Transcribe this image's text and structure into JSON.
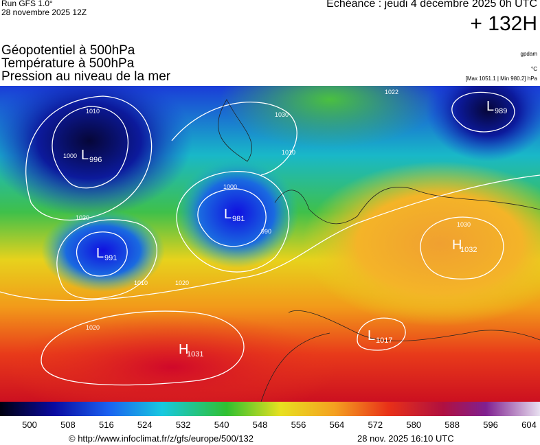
{
  "header": {
    "run": "Run GFS 1.0°",
    "run_date": "28 novembre 2025 12Z",
    "valid": "Echéance : jeudi 4 décembre 2025 0h UTC",
    "lead": "+ 132H",
    "fields": [
      "Géopotentiel à 500hPa",
      "Température à 500hPa",
      "Pression au niveau de la mer"
    ],
    "units": [
      "gpdam",
      "°C",
      "[Max 1051.1 | Min 980.2] hPa"
    ]
  },
  "centers": [
    {
      "type": "L",
      "pressure": 996
    },
    {
      "type": "L",
      "pressure": 981
    },
    {
      "type": "L",
      "pressure": 989
    },
    {
      "type": "H",
      "pressure": 1032
    },
    {
      "type": "L",
      "pressure": 991
    },
    {
      "type": "H",
      "pressure": 1031
    },
    {
      "type": "L",
      "pressure": 1017
    }
  ],
  "isobar_labels": [
    1010,
    1000,
    1020,
    1030,
    1010,
    1000,
    990,
    1010,
    1020,
    1030,
    1020,
    1022
  ],
  "colorbar": {
    "labels": [
      500,
      508,
      516,
      524,
      532,
      540,
      548,
      556,
      564,
      572,
      580,
      588,
      596,
      604
    ]
  },
  "footer": {
    "url": "© http://www.infoclimat.fr/z/gfs/europe/500/132",
    "generated": "28 nov. 2025 16:10 UTC"
  }
}
